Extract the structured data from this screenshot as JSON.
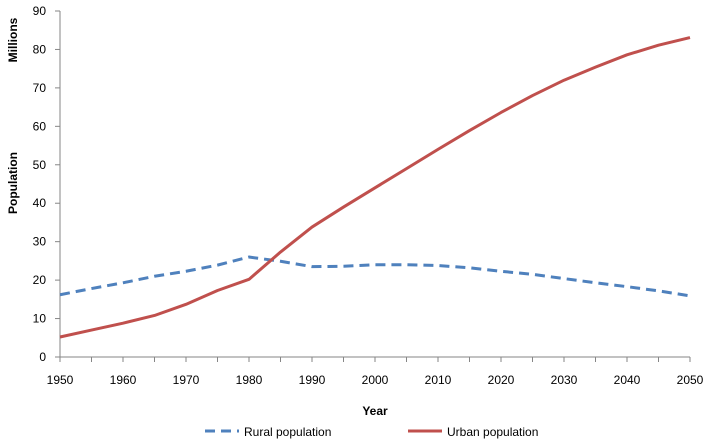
{
  "chart_data": {
    "type": "line",
    "title": "",
    "xlabel": "Year",
    "ylabel": "Population",
    "ylabel_unit": "Millions",
    "ylim": [
      0,
      90
    ],
    "yticks": [
      0,
      10,
      20,
      30,
      40,
      50,
      60,
      70,
      80,
      90
    ],
    "xticks": [
      "1950",
      "1960",
      "1970",
      "1980",
      "1990",
      "2000",
      "2010",
      "2020",
      "2030",
      "2040",
      "2050"
    ],
    "x": [
      "1950",
      "1955",
      "1960",
      "1965",
      "1970",
      "1975",
      "1980",
      "1985",
      "1990",
      "1995",
      "2000",
      "2005",
      "2010",
      "2015",
      "2020",
      "2025",
      "2030",
      "2035",
      "2040",
      "2045",
      "2050"
    ],
    "grid": false,
    "legend_position": "bottom",
    "series": [
      {
        "name": "Rural population",
        "color": "#4f81bd",
        "style": "dashed",
        "values": [
          16.2,
          17.8,
          19.3,
          21.0,
          22.3,
          23.9,
          26.0,
          24.9,
          23.5,
          23.6,
          24.0,
          24.0,
          23.8,
          23.2,
          22.3,
          21.5,
          20.4,
          19.3,
          18.3,
          17.2,
          15.9
        ]
      },
      {
        "name": "Urban population",
        "color": "#c0504d",
        "style": "solid",
        "values": [
          5.2,
          7.0,
          8.8,
          10.8,
          13.7,
          17.3,
          20.2,
          27.3,
          33.8,
          39.0,
          44.0,
          49.0,
          54.0,
          58.9,
          63.6,
          68.0,
          72.0,
          75.4,
          78.6,
          81.1,
          83.1
        ]
      }
    ]
  }
}
